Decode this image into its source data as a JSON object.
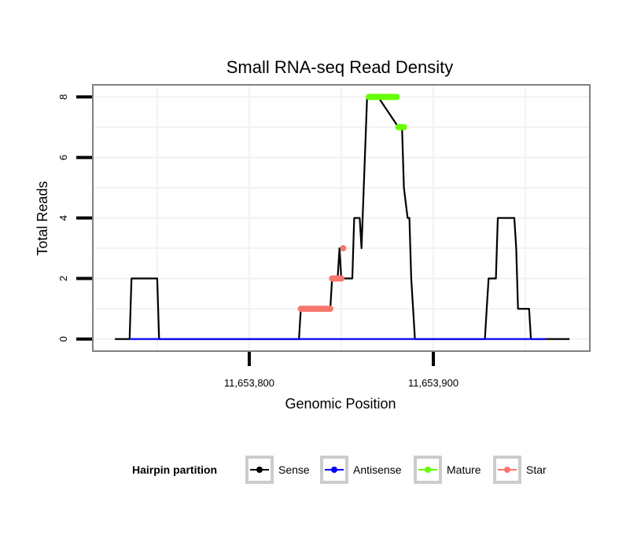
{
  "chart_data": {
    "type": "line",
    "title": "Small RNA-seq Read Density",
    "xlabel": "Genomic Position",
    "ylabel": "Total Reads",
    "xlim": [
      11653715,
      11653985
    ],
    "ylim": [
      -0.4,
      8.4
    ],
    "x_ticks": [
      11653800,
      11653900
    ],
    "x_tick_labels": [
      "11,653,800",
      "11,653,900"
    ],
    "y_ticks": [
      0,
      2,
      4,
      6,
      8
    ],
    "y_tick_labels": [
      "0",
      "2",
      "4",
      "6",
      "8"
    ],
    "grid": true,
    "legend": {
      "title": "Hairpin partition",
      "position": "bottom",
      "entries": [
        "Sense",
        "Antisense",
        "Mature",
        "Star"
      ]
    },
    "series": [
      {
        "name": "Sense",
        "color": "#000000",
        "style": "line",
        "x": [
          11653727,
          11653735,
          11653736,
          11653750,
          11653751,
          11653827,
          11653828,
          11653844,
          11653845,
          11653848,
          11653849,
          11653850,
          11653851,
          11653856,
          11653857,
          11653860,
          11653861,
          11653864,
          11653865,
          11653867,
          11653869,
          11653870,
          11653881,
          11653883,
          11653884,
          11653886,
          11653887,
          11653888,
          11653889,
          11653890,
          11653891,
          11653928,
          11653929,
          11653930,
          11653934,
          11653935,
          11653944,
          11653945,
          11653946,
          11653952,
          11653953,
          11653961,
          11653962,
          11653974
        ],
        "y": [
          0,
          0,
          2,
          2,
          0,
          0,
          1,
          1,
          2,
          2,
          3,
          2,
          2,
          2,
          4,
          4,
          3,
          8,
          8,
          8,
          8,
          8,
          7,
          7,
          5,
          4,
          4,
          2,
          1,
          0,
          0,
          0,
          1,
          2,
          2,
          4,
          4,
          3,
          1,
          1,
          0,
          0,
          0,
          0
        ]
      },
      {
        "name": "Antisense",
        "color": "#0000ff",
        "style": "line",
        "x": [
          11653735,
          11653961
        ],
        "y": [
          0,
          0
        ]
      },
      {
        "name": "Mature",
        "color": "#66ff00",
        "style": "points",
        "x": [
          11653865,
          11653866,
          11653867,
          11653868,
          11653869,
          11653870,
          11653871,
          11653872,
          11653873,
          11653874,
          11653875,
          11653876,
          11653877,
          11653878,
          11653879,
          11653880,
          11653881,
          11653882,
          11653883,
          11653884
        ],
        "y": [
          8,
          8,
          8,
          8,
          8,
          8,
          8,
          8,
          8,
          8,
          8,
          8,
          8,
          8,
          8,
          8,
          7,
          7,
          7,
          7
        ]
      },
      {
        "name": "Star",
        "color": "#f8766d",
        "style": "points",
        "x": [
          11653828,
          11653829,
          11653830,
          11653831,
          11653832,
          11653833,
          11653834,
          11653835,
          11653836,
          11653837,
          11653838,
          11653839,
          11653840,
          11653841,
          11653842,
          11653843,
          11653844,
          11653845,
          11653846,
          11653847,
          11653848,
          11653849,
          11653850,
          11653851
        ],
        "y": [
          1,
          1,
          1,
          1,
          1,
          1,
          1,
          1,
          1,
          1,
          1,
          1,
          1,
          1,
          1,
          1,
          1,
          2,
          2,
          2,
          2,
          2,
          2,
          3
        ]
      }
    ]
  }
}
